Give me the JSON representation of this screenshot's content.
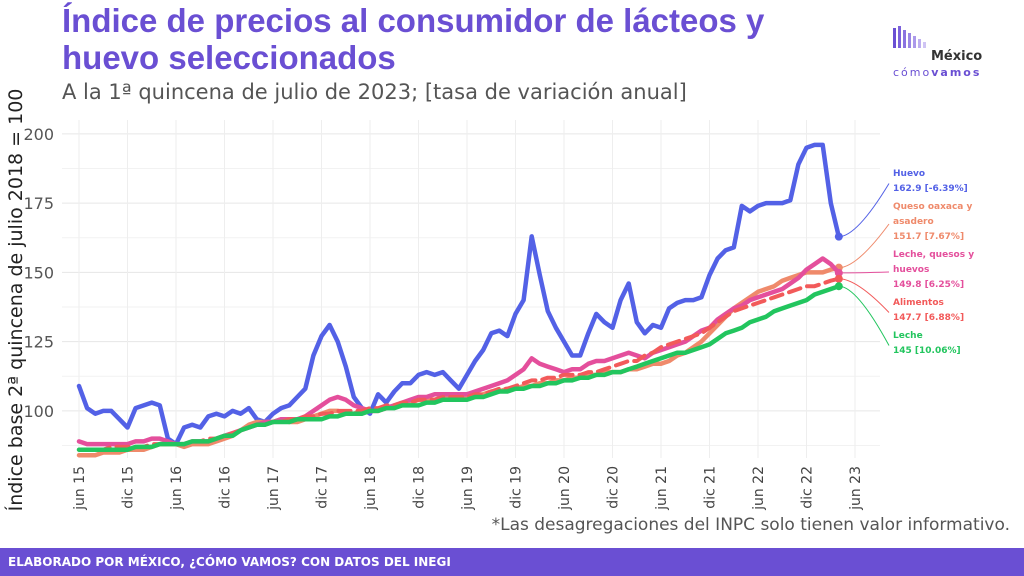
{
  "header": {
    "title": "Índice de precios al consumidor de lácteos y huevo seleccionados",
    "subtitle": "A la 1ª quincena de julio de 2023; [tasa de variación anual]"
  },
  "logo": {
    "line1": "México",
    "line2a": "cómo",
    "line2b": "vamos"
  },
  "note": "*Las desagregaciones del INPC solo tienen valor informativo.",
  "footer": "ELABORADO POR MÉXICO, ¿CÓMO VAMOS? CON DATOS DEL INEGI",
  "colors": {
    "huevo": "#5361e6",
    "queso": "#ef8a6b",
    "leche_quesos_huevos": "#e44f9c",
    "alimentos": "#f25a5a",
    "leche": "#22c55e",
    "brand": "#6a4fd3"
  },
  "chart_data": {
    "type": "line",
    "ylabel": "Índice base 2ª quincena de julio 2018 = 100",
    "xlabel": "",
    "ylim": [
      83,
      205
    ],
    "yticks": [
      100,
      125,
      150,
      175,
      200
    ],
    "grid": true,
    "xtick_labels": [
      "jun 15",
      "dic 15",
      "jun 16",
      "dic 16",
      "jun 17",
      "dic 17",
      "jun 18",
      "dic 18",
      "jun 19",
      "dic 19",
      "jun 20",
      "dic 20",
      "jun 21",
      "dic 21",
      "jun 22",
      "dic 22",
      "jun 23"
    ],
    "x_start": "jun 15",
    "x_end": "jul 23",
    "series": [
      {
        "key": "huevo",
        "name": "Huevo",
        "dash": false,
        "end_label": "Huevo",
        "end_value": "162.9 [-6.39%]",
        "values": [
          109,
          101,
          99,
          100,
          100,
          97,
          94,
          101,
          102,
          103,
          102,
          90,
          88,
          94,
          95,
          94,
          98,
          99,
          98,
          100,
          99,
          101,
          97,
          96,
          99,
          101,
          102,
          105,
          108,
          120,
          127,
          131,
          125,
          116,
          105,
          101,
          99,
          106,
          103,
          107,
          110,
          110,
          113,
          114,
          113,
          114,
          111,
          108,
          113,
          118,
          122,
          128,
          129,
          127,
          135,
          140,
          163,
          149,
          136,
          130,
          125,
          120,
          120,
          128,
          135,
          132,
          130,
          140,
          146,
          132,
          128,
          131,
          130,
          137,
          139,
          140,
          140,
          141,
          149,
          155,
          158,
          159,
          174,
          172,
          174,
          175,
          175,
          175,
          176,
          189,
          195,
          196,
          196,
          175,
          162.9
        ]
      },
      {
        "key": "queso",
        "name": "Queso oaxaca y asadero",
        "dash": false,
        "end_label": "Queso oaxaca y asadero",
        "end_value": "151.7 [7.67%]",
        "values": [
          84,
          84,
          84,
          85,
          85,
          85,
          86,
          86,
          86,
          87,
          88,
          88,
          88,
          87,
          88,
          88,
          88,
          89,
          90,
          91,
          93,
          95,
          96,
          96,
          96,
          97,
          96,
          96,
          97,
          98,
          99,
          100,
          100,
          99,
          99,
          100,
          100,
          100,
          101,
          102,
          103,
          103,
          104,
          104,
          104,
          105,
          105,
          105,
          105,
          105,
          106,
          107,
          107,
          108,
          108,
          109,
          109,
          110,
          110,
          111,
          111,
          112,
          112,
          113,
          113,
          114,
          114,
          114,
          115,
          115,
          116,
          117,
          117,
          118,
          120,
          121,
          123,
          125,
          128,
          131,
          134,
          137,
          139,
          141,
          143,
          144,
          145,
          147,
          148,
          149,
          150,
          150,
          150,
          151,
          151.7
        ]
      },
      {
        "key": "leche_quesos_huevos",
        "name": "Leche, quesos y huevos",
        "dash": false,
        "end_label": "Leche, quesos y huevos",
        "end_value": "149.8 [6.25%]",
        "values": [
          89,
          88,
          88,
          88,
          88,
          88,
          88,
          89,
          89,
          90,
          90,
          89,
          88,
          88,
          89,
          89,
          89,
          90,
          91,
          92,
          93,
          94,
          95,
          96,
          96,
          97,
          97,
          97,
          98,
          100,
          102,
          104,
          105,
          104,
          102,
          101,
          100,
          100,
          101,
          102,
          103,
          104,
          105,
          105,
          106,
          106,
          106,
          106,
          106,
          107,
          108,
          109,
          110,
          111,
          113,
          115,
          119,
          117,
          116,
          115,
          114,
          115,
          115,
          117,
          118,
          118,
          119,
          120,
          121,
          120,
          119,
          121,
          122,
          123,
          124,
          125,
          127,
          129,
          130,
          133,
          135,
          137,
          138,
          140,
          141,
          142,
          143,
          144,
          146,
          148,
          151,
          153,
          155,
          153,
          149.8
        ]
      },
      {
        "key": "alimentos",
        "name": "Alimentos",
        "dash": true,
        "end_label": "Alimentos",
        "end_value": "147.7 [6.88%]",
        "values": [
          86,
          86,
          86,
          86,
          87,
          87,
          87,
          87,
          87,
          88,
          88,
          88,
          88,
          88,
          89,
          89,
          90,
          90,
          91,
          92,
          93,
          94,
          95,
          95,
          96,
          96,
          97,
          97,
          98,
          98,
          99,
          99,
          100,
          100,
          100,
          100,
          101,
          101,
          102,
          102,
          103,
          103,
          104,
          104,
          104,
          105,
          105,
          105,
          105,
          106,
          106,
          107,
          108,
          108,
          109,
          110,
          111,
          111,
          112,
          112,
          113,
          113,
          113,
          114,
          114,
          115,
          116,
          117,
          118,
          118,
          120,
          121,
          123,
          124,
          125,
          126,
          127,
          128,
          130,
          132,
          134,
          136,
          137,
          138,
          139,
          140,
          141,
          142,
          143,
          144,
          145,
          145,
          146,
          147,
          147.7
        ]
      },
      {
        "key": "leche",
        "name": "Leche",
        "dash": false,
        "end_label": "Leche",
        "end_value": "145 [10.06%]",
        "values": [
          86,
          86,
          86,
          86,
          86,
          86,
          86,
          87,
          87,
          87,
          88,
          88,
          88,
          88,
          89,
          89,
          89,
          90,
          91,
          91,
          93,
          94,
          95,
          95,
          96,
          96,
          96,
          97,
          97,
          97,
          97,
          98,
          98,
          99,
          99,
          99,
          100,
          100,
          101,
          101,
          102,
          102,
          102,
          103,
          103,
          104,
          104,
          104,
          104,
          105,
          105,
          106,
          107,
          107,
          108,
          108,
          109,
          109,
          110,
          110,
          111,
          111,
          112,
          112,
          113,
          113,
          114,
          114,
          115,
          116,
          117,
          118,
          119,
          120,
          121,
          121,
          122,
          123,
          124,
          126,
          128,
          129,
          130,
          132,
          133,
          134,
          136,
          137,
          138,
          139,
          140,
          142,
          143,
          144,
          145
        ]
      }
    ]
  }
}
